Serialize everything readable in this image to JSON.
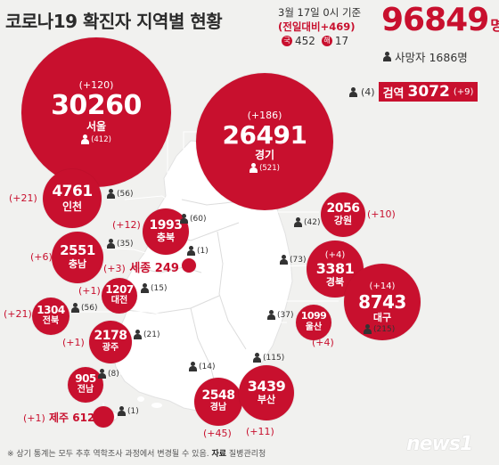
{
  "header": {
    "title": "코로나19 확진자 지역별 현황",
    "date_line": "3월 17일 0시 기준",
    "daily_change": "(전일대비+469)",
    "domestic_tag": "국",
    "domestic_value": "452",
    "overseas_tag": "해",
    "overseas_value": "17"
  },
  "totals": {
    "confirmed": "96849",
    "confirmed_unit": "명",
    "deaths_label": "사망자 1686명",
    "quarantine_deaths": "(4)",
    "quarantine_label": "검역",
    "quarantine_value": "3072",
    "quarantine_increase": "(+9)"
  },
  "regions": [
    {
      "key": "seoul",
      "name": "서울",
      "count": "30260",
      "increase": "(+120)",
      "deaths": "(412)"
    },
    {
      "key": "gyeonggi",
      "name": "경기",
      "count": "26491",
      "increase": "(+186)",
      "deaths": "(521)"
    },
    {
      "key": "incheon",
      "name": "인천",
      "count": "4761",
      "increase": "(+21)",
      "deaths": "(56)"
    },
    {
      "key": "gangwon",
      "name": "강원",
      "count": "2056",
      "increase": "(+10)",
      "deaths": "(42)"
    },
    {
      "key": "chungbuk",
      "name": "충북",
      "count": "1993",
      "increase": "(+12)",
      "deaths": "(60)"
    },
    {
      "key": "chungnam",
      "name": "충남",
      "count": "2551",
      "increase": "(+6)",
      "deaths": "(35)"
    },
    {
      "key": "sejong",
      "name": "세종",
      "count": "249",
      "increase": "(+3)",
      "deaths": "(1)"
    },
    {
      "key": "daejeon",
      "name": "대전",
      "count": "1207",
      "increase": "(+1)",
      "deaths": "(15)"
    },
    {
      "key": "gyeongbuk",
      "name": "경북",
      "count": "3381",
      "increase": "(+4)",
      "deaths": "(73)"
    },
    {
      "key": "daegu",
      "name": "대구",
      "count": "8743",
      "increase": "(+14)",
      "deaths": "(215)"
    },
    {
      "key": "jeonbuk",
      "name": "전북",
      "count": "1304",
      "increase": "(+21)",
      "deaths": "(56)"
    },
    {
      "key": "ulsan",
      "name": "울산",
      "count": "1099",
      "increase": "(+4)",
      "deaths": "(37)"
    },
    {
      "key": "gwangju",
      "name": "광주",
      "count": "2178",
      "increase": "(+1)",
      "deaths": "(21)"
    },
    {
      "key": "jeonnam",
      "name": "전남",
      "count": "905",
      "increase": "",
      "deaths": "(8)"
    },
    {
      "key": "gyeongnam",
      "name": "경남",
      "count": "2548",
      "increase": "(+45)",
      "deaths": "(14)"
    },
    {
      "key": "busan",
      "name": "부산",
      "count": "3439",
      "increase": "(+11)",
      "deaths": "(115)"
    },
    {
      "key": "jeju",
      "name": "제주",
      "count": "612",
      "increase": "(+1)",
      "deaths": "(1)"
    }
  ],
  "footer": {
    "note": "※ 상기 통계는 모두 추후 역학조사 과정에서 변경될 수 있음.",
    "source_label": "자료",
    "source": "질병관리청",
    "logo": "news1"
  },
  "colors": {
    "accent": "#c8102e",
    "map_fill": "#ffffff",
    "background": "#f1f1ef"
  }
}
